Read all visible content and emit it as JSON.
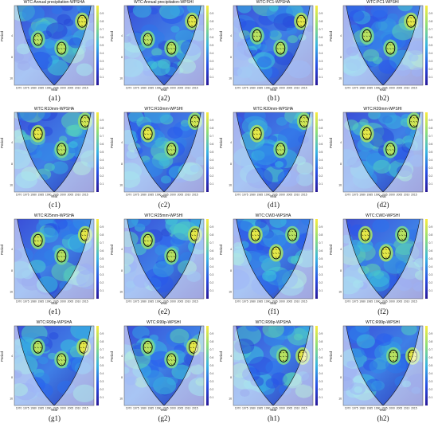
{
  "chart_data": [
    {
      "id": "a1",
      "type": "heatmap",
      "title": "WTC:Annual precipitation-WPSHA",
      "caption": "(a1)",
      "xlabel": "Year",
      "ylabel": "Period",
      "x_ticks": [
        "1970",
        "1975",
        "1980",
        "1985",
        "1990",
        "1995",
        "2000",
        "2005",
        "2010",
        "2015"
      ],
      "y_ticks": [
        "4",
        "8",
        "16"
      ],
      "colorbar_ticks": [
        "0.9",
        "0.8",
        "0.7",
        "0.6",
        "0.5",
        "0.4",
        "0.3",
        "0.2",
        "0.1"
      ],
      "hotspots": [
        {
          "year": 1983,
          "period": 4.5,
          "level": 0.85
        },
        {
          "year": 1999,
          "period": 6,
          "level": 0.85
        },
        {
          "year": 2013,
          "period": 2.5,
          "level": 0.95
        }
      ]
    },
    {
      "id": "a2",
      "type": "heatmap",
      "title": "WTC:Annual precipitation-WPSHI",
      "caption": "(a2)",
      "xlabel": "Year",
      "ylabel": "Period",
      "x_ticks": [
        "1970",
        "1975",
        "1980",
        "1985",
        "1990",
        "1995",
        "2000",
        "2005",
        "2010",
        "2015"
      ],
      "y_ticks": [
        "4",
        "8",
        "16"
      ],
      "colorbar_ticks": [
        "0.9",
        "0.8",
        "0.7",
        "0.6",
        "0.5",
        "0.4",
        "0.3",
        "0.2",
        "0.1"
      ],
      "hotspots": [
        {
          "year": 1983,
          "period": 4.5,
          "level": 0.85
        },
        {
          "year": 1999,
          "period": 6,
          "level": 0.85
        },
        {
          "year": 2013,
          "period": 2.5,
          "level": 0.95
        }
      ]
    },
    {
      "id": "b1",
      "type": "heatmap",
      "title": "WTC:PC1-WPSHA",
      "caption": "(b1)",
      "xlabel": "Year",
      "ylabel": "Period",
      "x_ticks": [
        "1970",
        "1975",
        "1980",
        "1985",
        "1990",
        "1995",
        "2000",
        "2005",
        "2010",
        "2015"
      ],
      "y_ticks": [
        "4",
        "8",
        "16"
      ],
      "colorbar_ticks": [
        "0.9",
        "0.8",
        "0.7",
        "0.6",
        "0.5",
        "0.4",
        "0.3",
        "0.2",
        "0.1"
      ],
      "hotspots": [
        {
          "year": 1983,
          "period": 4,
          "level": 0.85
        },
        {
          "year": 1999,
          "period": 6,
          "level": 0.85
        },
        {
          "year": 2013,
          "period": 2.5,
          "level": 0.95
        }
      ]
    },
    {
      "id": "b2",
      "type": "heatmap",
      "title": "WTC:PC1-WPSHI",
      "caption": "(b2)",
      "xlabel": "Year",
      "ylabel": "Period",
      "x_ticks": [
        "1970",
        "1975",
        "1980",
        "1985",
        "1990",
        "1995",
        "2000",
        "2005",
        "2010",
        "2015"
      ],
      "y_ticks": [
        "4",
        "8",
        "16"
      ],
      "colorbar_ticks": [
        "0.9",
        "0.8",
        "0.7",
        "0.6",
        "0.5",
        "0.4",
        "0.3",
        "0.2",
        "0.1"
      ],
      "hotspots": [
        {
          "year": 1983,
          "period": 4,
          "level": 0.85
        },
        {
          "year": 1999,
          "period": 6,
          "level": 0.85
        },
        {
          "year": 2013,
          "period": 2.5,
          "level": 0.95
        }
      ]
    },
    {
      "id": "c1",
      "type": "heatmap",
      "title": "WTC:R10mm-WPSHA",
      "caption": "(c1)",
      "xlabel": "Year",
      "ylabel": "Period",
      "x_ticks": [
        "1970",
        "1975",
        "1980",
        "1985",
        "1990",
        "1995",
        "2000",
        "2005",
        "2010",
        "2015"
      ],
      "y_ticks": [
        "4",
        "8",
        "16"
      ],
      "colorbar_ticks": [
        "0.9",
        "0.8",
        "0.7",
        "0.6",
        "0.5",
        "0.4",
        "0.3",
        "0.2",
        "0.1"
      ],
      "hotspots": [
        {
          "year": 1983,
          "period": 3,
          "level": 0.95
        },
        {
          "year": 1999,
          "period": 5,
          "level": 0.85
        },
        {
          "year": 2015,
          "period": 2,
          "level": 0.9
        }
      ]
    },
    {
      "id": "c2",
      "type": "heatmap",
      "title": "WTC:R10mm-WPSHI",
      "caption": "(c2)",
      "xlabel": "Year",
      "ylabel": "Period",
      "x_ticks": [
        "1970",
        "1975",
        "1980",
        "1985",
        "1990",
        "1995",
        "2000",
        "2005",
        "2010",
        "2015"
      ],
      "y_ticks": [
        "4",
        "8",
        "16"
      ],
      "colorbar_ticks": [
        "0.9",
        "0.8",
        "0.7",
        "0.6",
        "0.5",
        "0.4",
        "0.3",
        "0.2",
        "0.1"
      ],
      "hotspots": [
        {
          "year": 1983,
          "period": 3,
          "level": 0.95
        },
        {
          "year": 1999,
          "period": 5,
          "level": 0.85
        },
        {
          "year": 2015,
          "period": 2,
          "level": 0.9
        }
      ]
    },
    {
      "id": "d1",
      "type": "heatmap",
      "title": "WTC:R20mm-WPSHA",
      "caption": "(d1)",
      "xlabel": "Year",
      "ylabel": "Period",
      "x_ticks": [
        "1970",
        "1975",
        "1980",
        "1985",
        "1990",
        "1995",
        "2000",
        "2005",
        "2010",
        "2015"
      ],
      "y_ticks": [
        "4",
        "8",
        "16"
      ],
      "colorbar_ticks": [
        "0.9",
        "0.8",
        "0.7",
        "0.6",
        "0.5",
        "0.4",
        "0.3",
        "0.2",
        "0.1"
      ],
      "hotspots": [
        {
          "year": 1983,
          "period": 3,
          "level": 0.95
        },
        {
          "year": 1999,
          "period": 5,
          "level": 0.85
        },
        {
          "year": 2015,
          "period": 2,
          "level": 0.9
        }
      ]
    },
    {
      "id": "d2",
      "type": "heatmap",
      "title": "WTC:R20mm-WPSHI",
      "caption": "(d2)",
      "xlabel": "Year",
      "ylabel": "Period",
      "x_ticks": [
        "1970",
        "1975",
        "1980",
        "1985",
        "1990",
        "1995",
        "2000",
        "2005",
        "2010",
        "2015"
      ],
      "y_ticks": [
        "4",
        "8",
        "16"
      ],
      "colorbar_ticks": [
        "0.9",
        "0.8",
        "0.7",
        "0.6",
        "0.5",
        "0.4",
        "0.3",
        "0.2",
        "0.1"
      ],
      "hotspots": [
        {
          "year": 1983,
          "period": 3,
          "level": 0.95
        },
        {
          "year": 1999,
          "period": 5,
          "level": 0.85
        },
        {
          "year": 2015,
          "period": 2,
          "level": 0.9
        }
      ]
    },
    {
      "id": "e1",
      "type": "heatmap",
      "title": "WTC:R25mm-WPSHA",
      "caption": "(e1)",
      "xlabel": "Year",
      "ylabel": "Period",
      "x_ticks": [
        "1970",
        "1975",
        "1980",
        "1985",
        "1990",
        "1995",
        "2000",
        "2005",
        "2010",
        "2015"
      ],
      "y_ticks": [
        "4",
        "8",
        "16"
      ],
      "colorbar_ticks": [
        "0.9",
        "0.8",
        "0.7",
        "0.6",
        "0.5",
        "0.4",
        "0.3",
        "0.2",
        "0.1"
      ],
      "hotspots": [
        {
          "year": 1983,
          "period": 3,
          "level": 0.9
        },
        {
          "year": 1999,
          "period": 5,
          "level": 0.85
        },
        {
          "year": 2015,
          "period": 2.5,
          "level": 0.95
        }
      ]
    },
    {
      "id": "e2",
      "type": "heatmap",
      "title": "WTC:R25mm-WPSHI",
      "caption": "(e2)",
      "xlabel": "Year",
      "ylabel": "Period",
      "x_ticks": [
        "1970",
        "1975",
        "1980",
        "1985",
        "1990",
        "1995",
        "2000",
        "2005",
        "2010",
        "2015"
      ],
      "y_ticks": [
        "4",
        "8",
        "16"
      ],
      "colorbar_ticks": [
        "0.9",
        "0.8",
        "0.7",
        "0.6",
        "0.5",
        "0.4",
        "0.3",
        "0.2",
        "0.1"
      ],
      "hotspots": [
        {
          "year": 1983,
          "period": 3,
          "level": 0.9
        },
        {
          "year": 1999,
          "period": 5,
          "level": 0.85
        },
        {
          "year": 2015,
          "period": 2.5,
          "level": 0.95
        }
      ]
    },
    {
      "id": "f1",
      "type": "heatmap",
      "title": "WTC:CWD-WPSHA",
      "caption": "(f1)",
      "xlabel": "Year",
      "ylabel": "Period",
      "x_ticks": [
        "1970",
        "1975",
        "1980",
        "1985",
        "1990",
        "1995",
        "2000",
        "2005",
        "2010",
        "2015"
      ],
      "y_ticks": [
        "4",
        "8",
        "16"
      ],
      "colorbar_ticks": [
        "0.9",
        "0.8",
        "0.7",
        "0.6",
        "0.5",
        "0.4",
        "0.3",
        "0.2",
        "0.1"
      ],
      "hotspots": [
        {
          "year": 1982,
          "period": 2.5,
          "level": 0.95
        },
        {
          "year": 1996,
          "period": 4.5,
          "level": 0.95
        },
        {
          "year": 2007,
          "period": 2.5,
          "level": 0.85
        }
      ]
    },
    {
      "id": "f2",
      "type": "heatmap",
      "title": "WTC:CWD-WPSHI",
      "caption": "(f2)",
      "xlabel": "Year",
      "ylabel": "Period",
      "x_ticks": [
        "1970",
        "1975",
        "1980",
        "1985",
        "1990",
        "1995",
        "2000",
        "2005",
        "2010",
        "2015"
      ],
      "y_ticks": [
        "4",
        "8",
        "16"
      ],
      "colorbar_ticks": [
        "0.9",
        "0.8",
        "0.7",
        "0.6",
        "0.5",
        "0.4",
        "0.3",
        "0.2",
        "0.1"
      ],
      "hotspots": [
        {
          "year": 1982,
          "period": 2.5,
          "level": 0.95
        },
        {
          "year": 1996,
          "period": 4.5,
          "level": 0.95
        },
        {
          "year": 2007,
          "period": 2.5,
          "level": 0.85
        }
      ]
    },
    {
      "id": "g1",
      "type": "heatmap",
      "title": "WTC:R99p-WPSHA",
      "caption": "(g1)",
      "xlabel": "Year",
      "ylabel": "Period",
      "x_ticks": [
        "1970",
        "1975",
        "1980",
        "1985",
        "1990",
        "1995",
        "2000",
        "2005",
        "2010",
        "2015"
      ],
      "y_ticks": [
        "4",
        "8",
        "16"
      ],
      "colorbar_ticks": [
        "0.9",
        "0.8",
        "0.7",
        "0.6",
        "0.5",
        "0.4",
        "0.3",
        "0.2",
        "0.1"
      ],
      "hotspots": [
        {
          "year": 1983,
          "period": 3,
          "level": 0.85
        },
        {
          "year": 1999,
          "period": 4.5,
          "level": 0.85
        },
        {
          "year": 2014,
          "period": 3,
          "level": 0.95
        }
      ]
    },
    {
      "id": "g2",
      "type": "heatmap",
      "title": "WTC:R99p-WPSHI",
      "caption": "(g2)",
      "xlabel": "Year",
      "ylabel": "Period",
      "x_ticks": [
        "1970",
        "1975",
        "1980",
        "1985",
        "1990",
        "1995",
        "2000",
        "2005",
        "2010",
        "2015"
      ],
      "y_ticks": [
        "4",
        "8",
        "16"
      ],
      "colorbar_ticks": [
        "0.9",
        "0.8",
        "0.7",
        "0.6",
        "0.5",
        "0.4",
        "0.3",
        "0.2",
        "0.1"
      ],
      "hotspots": [
        {
          "year": 1983,
          "period": 3,
          "level": 0.85
        },
        {
          "year": 1999,
          "period": 4.5,
          "level": 0.85
        },
        {
          "year": 2014,
          "period": 3,
          "level": 0.95
        }
      ]
    },
    {
      "id": "h1",
      "type": "heatmap",
      "title": "WTC:R99p-WPSHA",
      "caption": "(h1)",
      "xlabel": "Year",
      "ylabel": "Period",
      "x_ticks": [
        "1970",
        "1975",
        "1980",
        "1985",
        "1990",
        "1995",
        "2000",
        "2005",
        "2010",
        "2015"
      ],
      "y_ticks": [
        "4",
        "8",
        "16"
      ],
      "colorbar_ticks": [
        "0.9",
        "0.8",
        "0.7",
        "0.6",
        "0.5",
        "0.4",
        "0.3",
        "0.2",
        "0.1"
      ],
      "hotspots": [
        {
          "year": 2001,
          "period": 4,
          "level": 0.85
        },
        {
          "year": 2014,
          "period": 4,
          "level": 0.95
        }
      ]
    },
    {
      "id": "h2",
      "type": "heatmap",
      "title": "WTC:R99p-WPSHI",
      "caption": "(h2)",
      "xlabel": "Year",
      "ylabel": "Period",
      "x_ticks": [
        "1970",
        "1975",
        "1980",
        "1985",
        "1990",
        "1995",
        "2000",
        "2005",
        "2010",
        "2015"
      ],
      "y_ticks": [
        "4",
        "8",
        "16"
      ],
      "colorbar_ticks": [
        "0.9",
        "0.8",
        "0.7",
        "0.6",
        "0.5",
        "0.4",
        "0.3",
        "0.2",
        "0.1"
      ],
      "hotspots": [
        {
          "year": 2001,
          "period": 4,
          "level": 0.85
        },
        {
          "year": 2014,
          "period": 4,
          "level": 0.95
        }
      ]
    }
  ]
}
